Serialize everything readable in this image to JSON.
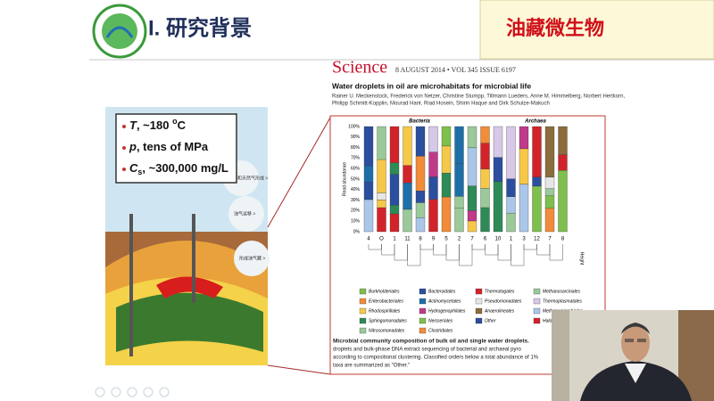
{
  "header": {
    "title": "I. 研究背景",
    "badge": "油藏微生物"
  },
  "bullets": [
    {
      "var": "T",
      "text": ", ~180 ",
      "sup": "o",
      "tail": "C"
    },
    {
      "var": "p",
      "text": ", tens of MPa"
    },
    {
      "var": "C",
      "sub": "s",
      "text": ", ~300,000 mg/L"
    }
  ],
  "illustration": {
    "labels": [
      "石油和天然气形成 >",
      "油气运移 >",
      "形成油气藏 >"
    ]
  },
  "paper": {
    "journal": "Science",
    "issue": "8 AUGUST 2014 • VOL 345 ISSUE 6197",
    "title": "Water droplets in oil are microhabitats for microbial life",
    "authors": [
      "Rainer U. Meckenstock, Frederick von Netzer, Christine Stumpp, Tillmann Lueders, Anne M. Himmelberg, Norbert Hertkorn,",
      "Philipp Schmitt-Kopplin, Mourad Harir, Riad Hosein, Shirin Haque and Dirk Schulze-Makuch"
    ],
    "figure": {
      "groups": [
        "Bacteria",
        "Archaea"
      ],
      "y_label": "Read abundance",
      "y_ticks": [
        "100%",
        "90%",
        "80%",
        "70%",
        "60%",
        "50%",
        "40%",
        "30%",
        "20%",
        "10%",
        "0%"
      ],
      "samples": [
        "4",
        "O",
        "1",
        "11",
        "8",
        "9",
        "5",
        "2",
        "7",
        "6",
        "10",
        "1",
        "3",
        "12",
        "7",
        "8"
      ],
      "height_label": "Height",
      "legend": [
        "Burkholderiales",
        "Bacteroidales",
        "Thermotogales",
        "Methanosarcinales",
        "Enterobacteriales",
        "Actinomycetales",
        "Pseudomonadales",
        "Thermoplasmatales",
        "Rhodospirillales",
        "Hydrogenophilales",
        "Anaerolineales",
        "Methanomicrobiales",
        "Sphingomonadales",
        "Neisseriales",
        "Other",
        "Halobacteriales",
        "Nitrosomonadales",
        "Clostridiales"
      ]
    },
    "caption": [
      "Microbial community composition of bulk oil and single water droplets.",
      "droplets and bulk-phase DNA extract sequencing of bacterial and archaeal pyro",
      "according to compositional clustering. Classified orders below a total abundance of 1%",
      "taxa are summarized as \"Other.\""
    ]
  }
}
